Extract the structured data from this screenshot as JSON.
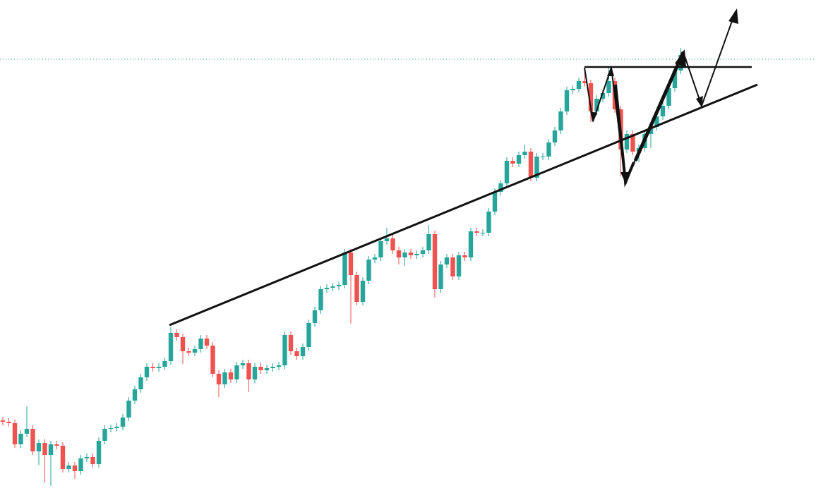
{
  "chart_data": {
    "type": "candlestick",
    "open": [
      103,
      101,
      99,
      69,
      84,
      91,
      59,
      71,
      54,
      69,
      67,
      34,
      39,
      31,
      49,
      51,
      41,
      74,
      91,
      92,
      94,
      107,
      131,
      147,
      164,
      179,
      177,
      179,
      187,
      227,
      221,
      201,
      199,
      204,
      219,
      209,
      169,
      154,
      171,
      161,
      181,
      184,
      161,
      179,
      174,
      177,
      179,
      181,
      224,
      201,
      194,
      207,
      241,
      259,
      289,
      291,
      293,
      295,
      341,
      309,
      271,
      301,
      331,
      334,
      357,
      361,
      344,
      334,
      341,
      337,
      339,
      344,
      367,
      289,
      324,
      334,
      307,
      337,
      334,
      371,
      369,
      369,
      399,
      427,
      439,
      471,
      467,
      479,
      484,
      447,
      477,
      477,
      497,
      514,
      541,
      571,
      573,
      584,
      581,
      541,
      559,
      567,
      584,
      544,
      487,
      509,
      484,
      489,
      509,
      519,
      534,
      549,
      574,
      599
    ],
    "high": [
      108,
      106,
      104,
      89,
      123,
      96,
      76,
      76,
      74,
      74,
      72,
      44,
      44,
      54,
      56,
      56,
      79,
      96,
      97,
      99,
      112,
      136,
      152,
      169,
      184,
      184,
      184,
      192,
      235,
      232,
      226,
      206,
      209,
      224,
      224,
      214,
      174,
      176,
      176,
      186,
      189,
      189,
      184,
      184,
      182,
      184,
      186,
      229,
      229,
      206,
      212,
      246,
      264,
      294,
      296,
      298,
      300,
      346,
      346,
      314,
      306,
      336,
      339,
      362,
      376,
      366,
      349,
      346,
      346,
      344,
      349,
      380,
      372,
      329,
      339,
      339,
      342,
      342,
      376,
      376,
      374,
      404,
      432,
      444,
      476,
      476,
      484,
      494,
      489,
      482,
      482,
      502,
      519,
      546,
      576,
      578,
      589,
      604,
      586,
      564,
      572,
      604,
      589,
      549,
      514,
      514,
      494,
      514,
      524,
      539,
      554,
      579,
      604,
      631
    ],
    "low": [
      96,
      94,
      64,
      64,
      79,
      54,
      40,
      15,
      10,
      62,
      29,
      29,
      20,
      26,
      44,
      36,
      36,
      69,
      86,
      87,
      89,
      102,
      126,
      142,
      159,
      172,
      172,
      174,
      182,
      216,
      183,
      194,
      194,
      199,
      204,
      164,
      136,
      149,
      156,
      156,
      176,
      143,
      156,
      169,
      169,
      172,
      174,
      176,
      196,
      189,
      189,
      202,
      236,
      254,
      284,
      286,
      288,
      290,
      240,
      266,
      266,
      296,
      326,
      329,
      352,
      339,
      324,
      322,
      332,
      332,
      334,
      339,
      277,
      284,
      319,
      302,
      302,
      329,
      329,
      364,
      364,
      364,
      394,
      422,
      434,
      462,
      462,
      474,
      442,
      442,
      472,
      472,
      492,
      509,
      536,
      566,
      568,
      576,
      526,
      536,
      554,
      562,
      539,
      449,
      482,
      479,
      469,
      484,
      489,
      514,
      529,
      544,
      569,
      594
    ],
    "close": [
      101,
      99,
      69,
      84,
      91,
      59,
      71,
      54,
      69,
      67,
      34,
      39,
      31,
      49,
      51,
      41,
      74,
      91,
      92,
      94,
      107,
      131,
      147,
      164,
      179,
      177,
      179,
      187,
      227,
      221,
      201,
      199,
      204,
      219,
      209,
      169,
      154,
      171,
      161,
      181,
      184,
      161,
      179,
      174,
      177,
      179,
      181,
      224,
      201,
      194,
      207,
      241,
      259,
      289,
      291,
      293,
      295,
      341,
      309,
      271,
      301,
      331,
      334,
      357,
      361,
      344,
      334,
      341,
      337,
      339,
      344,
      367,
      289,
      324,
      334,
      307,
      337,
      334,
      371,
      369,
      369,
      399,
      427,
      439,
      471,
      467,
      479,
      484,
      447,
      477,
      477,
      497,
      514,
      541,
      571,
      573,
      584,
      581,
      541,
      559,
      567,
      584,
      544,
      487,
      509,
      484,
      489,
      509,
      519,
      534,
      549,
      574,
      599,
      621
    ],
    "ylim": [
      0,
      699
    ],
    "up_color": "#26a69a",
    "down_color": "#ef5350"
  }
}
